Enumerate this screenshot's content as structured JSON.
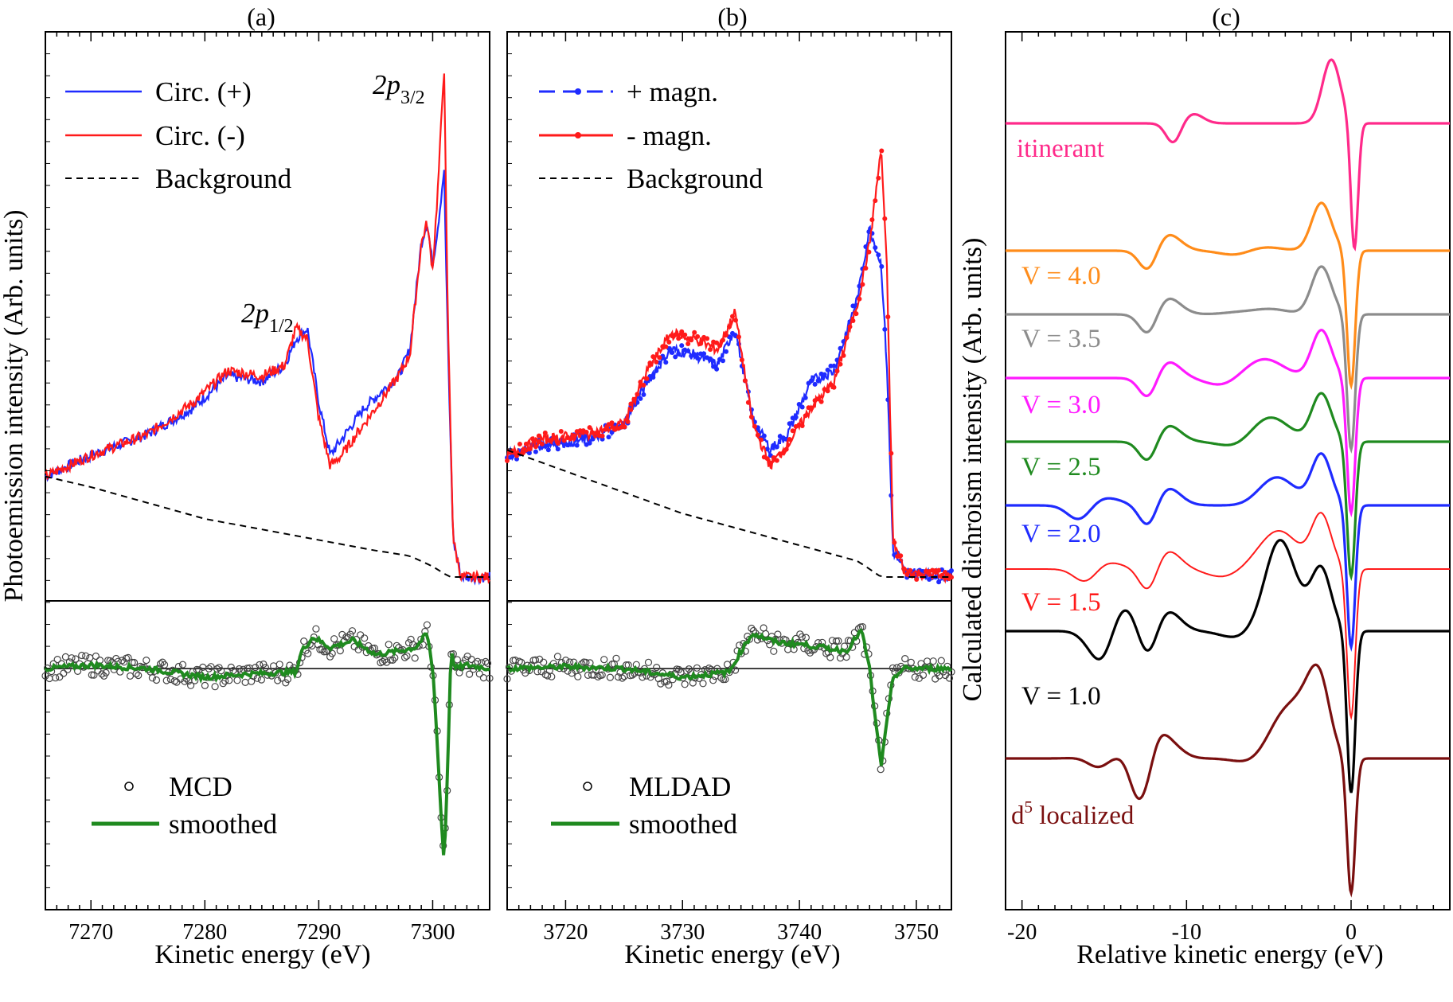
{
  "chart_data": [
    {
      "panel": "(a)",
      "type": "line",
      "xlabel": "Kinetic energy (eV)",
      "ylabel": "Photoemission intensity  (Arb. units)",
      "xlim": [
        7266,
        7305
      ],
      "xticks": [
        7270,
        7280,
        7290,
        7300
      ],
      "annotations": [
        {
          "base": "2p",
          "sub": "1/2",
          "x": 7288
        },
        {
          "base": "2p",
          "sub": "3/2",
          "x": 7299
        }
      ],
      "upper": {
        "ylim": [
          0,
          1.0
        ],
        "series": [
          {
            "name": "Circ. (+)",
            "color": "#1f2bff",
            "x": [
              7266,
              7270,
              7275,
              7279,
              7282,
              7285,
              7287,
              7288,
              7289,
              7290,
              7291,
              7292,
              7294,
              7296,
              7297,
              7298,
              7299,
              7299.5,
              7300,
              7300.5,
              7301,
              7301.3,
              7301.8,
              7302.5,
              7305
            ],
            "y": [
              0.22,
              0.26,
              0.3,
              0.35,
              0.41,
              0.4,
              0.43,
              0.48,
              0.5,
              0.36,
              0.26,
              0.29,
              0.35,
              0.39,
              0.41,
              0.46,
              0.66,
              0.7,
              0.62,
              0.7,
              0.8,
              0.5,
              0.1,
              0.03,
              0.03
            ]
          },
          {
            "name": "Circ. (-)",
            "color": "#ff1a1a",
            "x": [
              7266,
              7270,
              7275,
              7279,
              7282,
              7285,
              7287,
              7288,
              7289,
              7290,
              7291,
              7292,
              7294,
              7296,
              7297,
              7298,
              7299,
              7299.5,
              7300,
              7300.5,
              7301,
              7301.3,
              7301.8,
              7302.5,
              7305
            ],
            "y": [
              0.22,
              0.26,
              0.3,
              0.36,
              0.42,
              0.41,
              0.43,
              0.5,
              0.48,
              0.33,
              0.24,
              0.26,
              0.32,
              0.38,
              0.41,
              0.45,
              0.66,
              0.7,
              0.61,
              0.78,
              1.0,
              0.55,
              0.1,
              0.03,
              0.03
            ]
          },
          {
            "name": "Background",
            "color": "#000000",
            "x": [
              7266,
              7270,
              7275,
              7280,
              7285,
              7290,
              7295,
              7298,
              7300,
              7301.5,
              7305
            ],
            "y": [
              0.22,
              0.2,
              0.17,
              0.14,
              0.12,
              0.1,
              0.08,
              0.07,
              0.05,
              0.03,
              0.03
            ]
          }
        ]
      },
      "lower": {
        "ylim": [
          -1.2,
          0.3
        ],
        "series": [
          {
            "name": "MCD",
            "marker": "open-circle",
            "color": "#000000"
          },
          {
            "name": "smoothed",
            "color": "#1f8a1f",
            "x": [
              7266,
              7270,
              7275,
              7280,
              7284,
              7288,
              7288.5,
              7289.5,
              7291,
              7293,
              7295,
              7297,
              7298.5,
              7299.5,
              7300,
              7300.3,
              7300.7,
              7301,
              7301.3,
              7301.6,
              7302,
              7303,
              7305
            ],
            "y": [
              0.0,
              0.02,
              0.0,
              -0.05,
              -0.03,
              -0.02,
              0.1,
              0.18,
              0.12,
              0.16,
              0.08,
              0.1,
              0.12,
              0.2,
              0.0,
              -0.3,
              -0.8,
              -1.12,
              -0.6,
              0.1,
              0.0,
              0.02,
              0.0
            ]
          }
        ]
      }
    },
    {
      "panel": "(b)",
      "type": "line",
      "xlabel": "Kinetic energy  (eV)",
      "xlim": [
        3715,
        3753
      ],
      "xticks": [
        3720,
        3730,
        3740,
        3750
      ],
      "upper": {
        "ylim": [
          0,
          1.0
        ],
        "series": [
          {
            "name": "+ magn.",
            "color": "#1f2bff",
            "x": [
              3715,
              3718,
              3722,
              3725,
              3727,
              3729,
              3731,
              3733,
              3734.5,
              3736,
              3737.5,
              3739,
              3741,
              3743,
              3745,
              3746,
              3747,
              3747.5,
              3748,
              3749,
              3753
            ],
            "y": [
              0.26,
              0.28,
              0.29,
              0.32,
              0.4,
              0.46,
              0.45,
              0.43,
              0.5,
              0.33,
              0.27,
              0.3,
              0.4,
              0.42,
              0.56,
              0.69,
              0.62,
              0.42,
              0.08,
              0.04,
              0.03
            ]
          },
          {
            "name": "- magn.",
            "color": "#ff1a1a",
            "x": [
              3715,
              3718,
              3722,
              3725,
              3727,
              3729,
              3731,
              3733,
              3734.5,
              3736,
              3737.5,
              3739,
              3741,
              3743,
              3745,
              3746,
              3747,
              3747.5,
              3748,
              3749,
              3753
            ],
            "y": [
              0.26,
              0.29,
              0.3,
              0.32,
              0.42,
              0.49,
              0.48,
              0.46,
              0.53,
              0.32,
              0.24,
              0.28,
              0.35,
              0.4,
              0.55,
              0.66,
              0.84,
              0.6,
              0.1,
              0.04,
              0.03
            ]
          },
          {
            "name": "Background",
            "color": "#000000",
            "x": [
              3715,
              3720,
              3725,
              3730,
              3735,
              3740,
              3745,
              3747,
              3753
            ],
            "y": [
              0.27,
              0.23,
              0.19,
              0.15,
              0.12,
              0.09,
              0.06,
              0.03,
              0.03
            ]
          }
        ]
      },
      "lower": {
        "ylim": [
          -1.2,
          0.3
        ],
        "series": [
          {
            "name": "MLDAD",
            "marker": "open-circle",
            "color": "#000000"
          },
          {
            "name": "smoothed",
            "color": "#1f8a1f",
            "x": [
              3715,
              3720,
              3725,
              3730,
              3734,
              3735,
              3736,
              3738,
              3740,
              3742,
              3744,
              3745.3,
              3746,
              3746.5,
              3747,
              3747.5,
              3748,
              3749,
              3753
            ],
            "y": [
              0.0,
              0.01,
              0.0,
              -0.05,
              -0.02,
              0.1,
              0.2,
              0.15,
              0.14,
              0.12,
              0.1,
              0.22,
              0.0,
              -0.3,
              -0.55,
              -0.3,
              -0.05,
              0.0,
              0.0
            ]
          }
        ]
      }
    },
    {
      "panel": "(c)",
      "type": "line",
      "xlabel": "Relative kinetic energy (eV)",
      "ylabel": "Calculated dichroism intensity (Arb. units)",
      "xlim": [
        -21,
        6
      ],
      "xticks": [
        -20,
        -10,
        0
      ],
      "series": [
        {
          "name": "itinerant",
          "color": "#ff2a8a"
        },
        {
          "name": "V = 4.0",
          "color": "#ff8c1a"
        },
        {
          "name": "V = 3.5",
          "color": "#8c8c8c"
        },
        {
          "name": "V = 3.0",
          "color": "#ff1aff"
        },
        {
          "name": "V = 2.5",
          "color": "#1f8a1f"
        },
        {
          "name": "V = 2.0",
          "color": "#1f2bff"
        },
        {
          "name": "V = 1.5",
          "color": "#ff1a1a"
        },
        {
          "name": "V = 1.0",
          "color": "#000000"
        },
        {
          "name": "d5 localized",
          "label_base": "d",
          "label_sup": "5",
          "label_rest": " localized",
          "color": "#7a0f0f"
        }
      ]
    }
  ],
  "panels": {
    "a": {
      "label": "(a)",
      "legend": {
        "l1": "Circ. (+)",
        "l2": "Circ. (-)",
        "l3": "Background",
        "l4": "MCD",
        "l5": "smoothed"
      }
    },
    "b": {
      "label": "(b)",
      "legend": {
        "l1": "+ magn.",
        "l2": "- magn.",
        "l3": "Background",
        "l4": "MLDAD",
        "l5": "smoothed"
      }
    },
    "c": {
      "label": "(c)"
    }
  }
}
